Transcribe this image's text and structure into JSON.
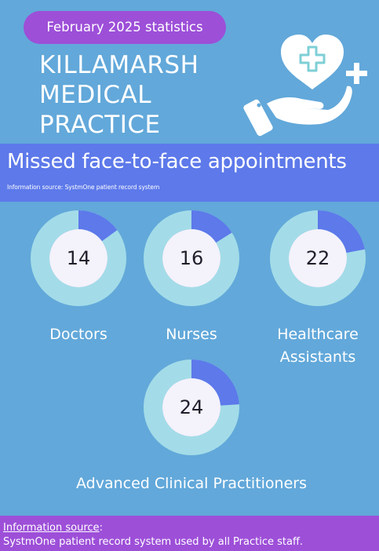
{
  "header": {
    "period_label": "February 2025 statistics",
    "practice_name_lines": [
      "KILLAMARSH",
      "MEDICAL",
      "PRACTICE"
    ]
  },
  "banner": {
    "title": "Missed face-to-face appointments",
    "source_note": "Information source: SystmOne patient record system"
  },
  "stats": [
    {
      "label_lines": [
        "Doctors"
      ],
      "value": "14",
      "fill_fraction": 0.15
    },
    {
      "label_lines": [
        "Nurses"
      ],
      "value": "16",
      "fill_fraction": 0.16
    },
    {
      "label_lines": [
        "Healthcare",
        "Assistants"
      ],
      "value": "22",
      "fill_fraction": 0.22
    },
    {
      "label_lines": [
        "Advanced Clinical Practitioners"
      ],
      "value": "24",
      "fill_fraction": 0.24
    }
  ],
  "footer": {
    "source_link": "Information source",
    "source_colon": ":",
    "source_description": "SystmOne patient record system used by all Practice staff."
  },
  "colors": {
    "background": "#62a8da",
    "accent_purple": "#9d4fd8",
    "banner_blue": "#5d79ea",
    "donut_ring": "#a3dce8",
    "donut_fill": "#5d79ea",
    "donut_center": "#f4f2fb"
  },
  "icons": {
    "hero": "hand-holding-heart-icon"
  }
}
